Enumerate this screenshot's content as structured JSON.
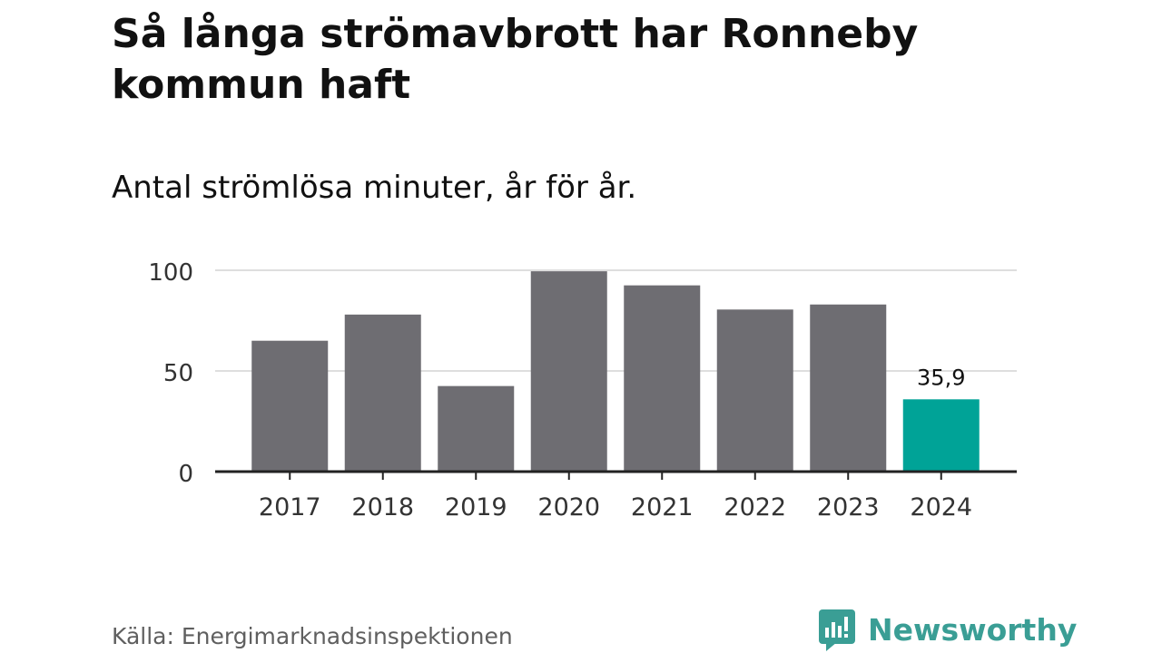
{
  "chart_data": {
    "type": "bar",
    "title": "Så långa strömavbrott har Ronneby kommun haft",
    "subtitle": "Antal strömlösa minuter, år för år.",
    "categories": [
      "2017",
      "2018",
      "2019",
      "2020",
      "2021",
      "2022",
      "2023",
      "2024"
    ],
    "values": [
      65,
      78,
      42.5,
      99.5,
      92.5,
      80.5,
      83,
      35.9
    ],
    "highlight_index": 7,
    "data_labels": [
      {
        "index": 7,
        "text": "35,9"
      }
    ],
    "y_ticks": [
      0,
      50,
      100
    ],
    "ylim": [
      0,
      100
    ],
    "xlabel": "",
    "ylabel": "",
    "grid": true,
    "colors": {
      "bar": "#6e6d72",
      "highlight": "#00a397",
      "grid": "#dedede",
      "axis": "#222222"
    }
  },
  "source": "Källa: Energimarknadsinspektionen",
  "brand": {
    "name": "Newsworthy",
    "icon": "newsworthy-logo-icon",
    "color": "#3a9e95"
  }
}
